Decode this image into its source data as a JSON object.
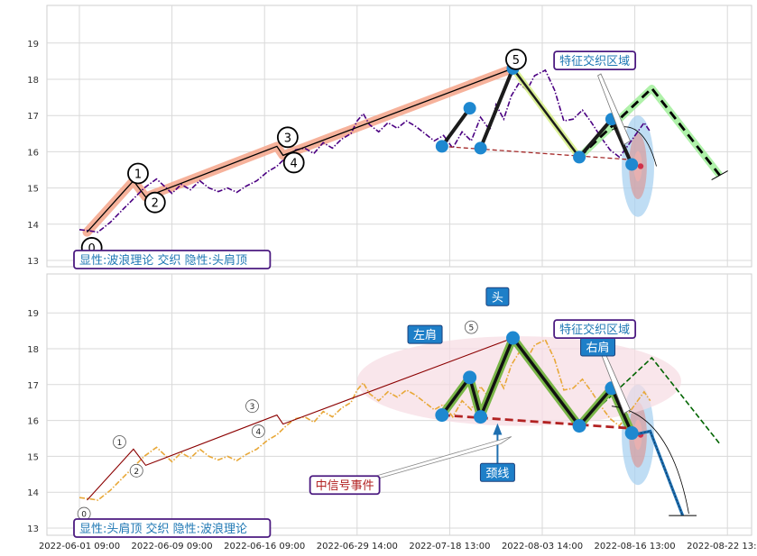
{
  "chart_data": [
    {
      "type": "line",
      "panel": "top",
      "ylim": [
        12.8,
        20.0
      ],
      "yticks": [
        13,
        14,
        15,
        16,
        17,
        18,
        19
      ],
      "grid": true,
      "colors": {
        "price": "#4b0082",
        "wave": "#000000",
        "wave_band": "#f4a58a",
        "neck": "#a52a2a",
        "forecast": "#000000",
        "forecast_band": "#a6f0a0",
        "hs": "#1b1b1b",
        "node": "#1e88d0"
      },
      "price_series": [
        [
          0.0,
          13.85
        ],
        [
          0.6,
          13.82
        ],
        [
          1.2,
          13.78
        ],
        [
          2.0,
          14.05
        ],
        [
          2.8,
          14.4
        ],
        [
          3.5,
          14.7
        ],
        [
          4.2,
          15.0
        ],
        [
          5.0,
          15.25
        ],
        [
          5.5,
          15.05
        ],
        [
          6.0,
          14.85
        ],
        [
          6.6,
          15.1
        ],
        [
          7.2,
          14.95
        ],
        [
          7.8,
          15.2
        ],
        [
          8.4,
          15.0
        ],
        [
          9.0,
          14.9
        ],
        [
          9.6,
          15.0
        ],
        [
          10.2,
          14.88
        ],
        [
          10.8,
          15.05
        ],
        [
          11.5,
          15.2
        ],
        [
          12.2,
          15.45
        ],
        [
          12.8,
          15.6
        ],
        [
          13.4,
          15.85
        ],
        [
          14.0,
          16.05
        ],
        [
          14.6,
          16.1
        ],
        [
          15.2,
          15.95
        ],
        [
          15.8,
          16.25
        ],
        [
          16.4,
          16.1
        ],
        [
          17.0,
          16.35
        ],
        [
          17.6,
          16.5
        ],
        [
          18.0,
          16.85
        ],
        [
          18.4,
          17.05
        ],
        [
          18.8,
          16.75
        ],
        [
          19.4,
          16.55
        ],
        [
          20.0,
          16.8
        ],
        [
          20.6,
          16.65
        ],
        [
          21.2,
          16.85
        ],
        [
          21.8,
          16.7
        ],
        [
          22.4,
          16.5
        ],
        [
          23.0,
          16.3
        ],
        [
          23.6,
          16.45
        ],
        [
          24.2,
          16.1
        ],
        [
          24.8,
          16.55
        ],
        [
          25.4,
          16.3
        ],
        [
          26.0,
          16.95
        ],
        [
          26.6,
          16.6
        ],
        [
          27.0,
          17.3
        ],
        [
          27.5,
          16.9
        ],
        [
          28.0,
          17.55
        ],
        [
          28.5,
          17.9
        ],
        [
          29.0,
          17.7
        ],
        [
          29.5,
          18.1
        ],
        [
          30.2,
          18.25
        ],
        [
          30.8,
          17.7
        ],
        [
          31.4,
          16.85
        ],
        [
          32.0,
          16.9
        ],
        [
          32.6,
          17.15
        ],
        [
          33.2,
          16.8
        ],
        [
          33.8,
          16.4
        ],
        [
          34.4,
          16.05
        ],
        [
          35.0,
          15.85
        ],
        [
          35.6,
          16.2
        ],
        [
          36.1,
          16.5
        ],
        [
          36.6,
          16.8
        ],
        [
          37.0,
          16.55
        ]
      ],
      "wave_points": [
        [
          0.5,
          13.78
        ],
        [
          3.5,
          15.2
        ],
        [
          4.3,
          14.75
        ],
        [
          12.8,
          16.15
        ],
        [
          13.2,
          15.9
        ],
        [
          28.1,
          18.3
        ]
      ],
      "wave_labels": [
        {
          "x": 0.8,
          "y": 13.35,
          "label": "0"
        },
        {
          "x": 3.8,
          "y": 15.4,
          "label": "1"
        },
        {
          "x": 4.9,
          "y": 14.6,
          "label": "2"
        },
        {
          "x": 13.5,
          "y": 16.4,
          "label": "3"
        },
        {
          "x": 13.9,
          "y": 15.7,
          "label": "4"
        },
        {
          "x": 28.3,
          "y": 18.55,
          "label": "5"
        }
      ],
      "hs_points": [
        [
          23.5,
          16.15
        ],
        [
          25.3,
          17.2
        ],
        [
          26.0,
          16.1
        ],
        [
          28.1,
          18.3
        ],
        [
          32.4,
          15.85
        ],
        [
          34.5,
          16.9
        ],
        [
          35.8,
          15.65
        ]
      ],
      "hs_strokes": [
        [
          [
            23.5,
            16.15
          ],
          [
            25.3,
            17.2
          ]
        ],
        [
          [
            26.0,
            16.1
          ],
          [
            28.1,
            18.3
          ]
        ],
        [
          [
            32.4,
            15.85
          ],
          [
            34.5,
            16.9
          ]
        ]
      ],
      "neckline": [
        [
          23.5,
          16.15
        ],
        [
          35.8,
          15.78
        ]
      ],
      "forecast_path": [
        [
          32.4,
          15.85
        ],
        [
          37.1,
          17.75
        ],
        [
          41.5,
          15.35
        ]
      ],
      "forecast_ends": [
        [
          41.5,
          15.35
        ]
      ],
      "ellipse": {
        "x": 36.2,
        "y": 15.6,
        "rx": 1.05,
        "ry": 1.4
      },
      "annotations": [
        {
          "label": "特征交织区域",
          "x": 33.4,
          "y": 18.52,
          "style": "purple"
        }
      ],
      "info_label": "显性:波浪理论 交织 隐性:头肩顶"
    },
    {
      "type": "line",
      "panel": "bottom",
      "ylim": [
        12.8,
        20.0
      ],
      "yticks": [
        13,
        14,
        15,
        16,
        17,
        18,
        19
      ],
      "grid": true,
      "colors": {
        "price": "#e8a838",
        "wave": "#8b0000",
        "wave_band": "#f4a58a",
        "neck": "#b22222",
        "forecast": "#000000",
        "forecast_band": "#4caf50",
        "hs": "#111111",
        "hs_band": "#7ab648",
        "node": "#1e88d0",
        "blue_leg": "#1e6fb0"
      },
      "x_tick_labels": [
        "2022-06-01 09:00",
        "2022-06-09 09:00",
        "2022-06-16 09:00",
        "2022-06-29 14:00",
        "2022-07-18 13:00",
        "2022-08-03 14:00",
        "2022-08-16 13:00",
        "2022-08-22 13:00"
      ],
      "x_tick_positions": [
        0,
        6,
        12,
        18,
        24,
        30,
        36,
        42
      ],
      "wave_labels": [
        {
          "x": 2.6,
          "y": 15.4,
          "label": "1"
        },
        {
          "x": 3.7,
          "y": 14.6,
          "label": "2"
        },
        {
          "x": 11.2,
          "y": 16.4,
          "label": "3"
        },
        {
          "x": 11.6,
          "y": 15.7,
          "label": "4"
        },
        {
          "x": 25.4,
          "y": 18.6,
          "label": "5"
        },
        {
          "x": 0.3,
          "y": 13.4,
          "label": "0"
        }
      ],
      "forecast_path": [
        [
          32.4,
          15.85
        ],
        [
          37.1,
          17.75
        ],
        [
          41.5,
          15.35
        ]
      ],
      "blue_leg": [
        [
          35.9,
          15.6
        ],
        [
          37.0,
          15.7
        ],
        [
          39.1,
          13.35
        ]
      ],
      "ellipse": {
        "x": 36.2,
        "y": 15.6,
        "rx": 1.05,
        "ry": 1.4
      },
      "annotations": [
        {
          "label": "头",
          "x": 27.1,
          "y": 19.45,
          "style": "blue"
        },
        {
          "label": "左肩",
          "x": 22.4,
          "y": 18.4,
          "style": "blue"
        },
        {
          "label": "右肩",
          "x": 33.6,
          "y": 18.05,
          "style": "blue"
        },
        {
          "label": "特征交织区域",
          "x": 33.4,
          "y": 18.55,
          "style": "purple"
        },
        {
          "label": "颈线",
          "x": 27.1,
          "y": 14.55,
          "style": "blue"
        },
        {
          "label": "中信号事件",
          "x": 17.2,
          "y": 14.2,
          "style": "purple"
        }
      ],
      "info_label": "显性:头肩顶 交织 隐性:波浪理论"
    }
  ]
}
